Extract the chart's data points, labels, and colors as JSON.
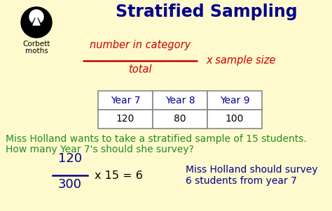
{
  "title": "Stratified Sampling",
  "title_color": "#00008B",
  "bg_color": "#FFFACD",
  "formula_numerator": "number in category",
  "formula_denominator": "total",
  "formula_rhs": "x sample size",
  "formula_color": "#CC0000",
  "table_headers": [
    "Year 7",
    "Year 8",
    "Year 9"
  ],
  "table_values": [
    "120",
    "80",
    "100"
  ],
  "table_header_color": "#00008B",
  "table_value_color": "#000000",
  "question_line1": "Miss Holland wants to take a stratified sample of 15 students.",
  "question_line2": "How many Year 7's should she survey?",
  "question_color": "#228B22",
  "calc_numerator": "120",
  "calc_denominator": "300",
  "calc_rhs": "x 15 = 6",
  "calc_color": "#00008B",
  "answer_line1": "Miss Holland should survey",
  "answer_line2": "6 students from year 7",
  "answer_color": "#00008B",
  "corbett_line1": "Corbett",
  "corbett_line2": "mοths",
  "corbett_text_color": "#000000"
}
